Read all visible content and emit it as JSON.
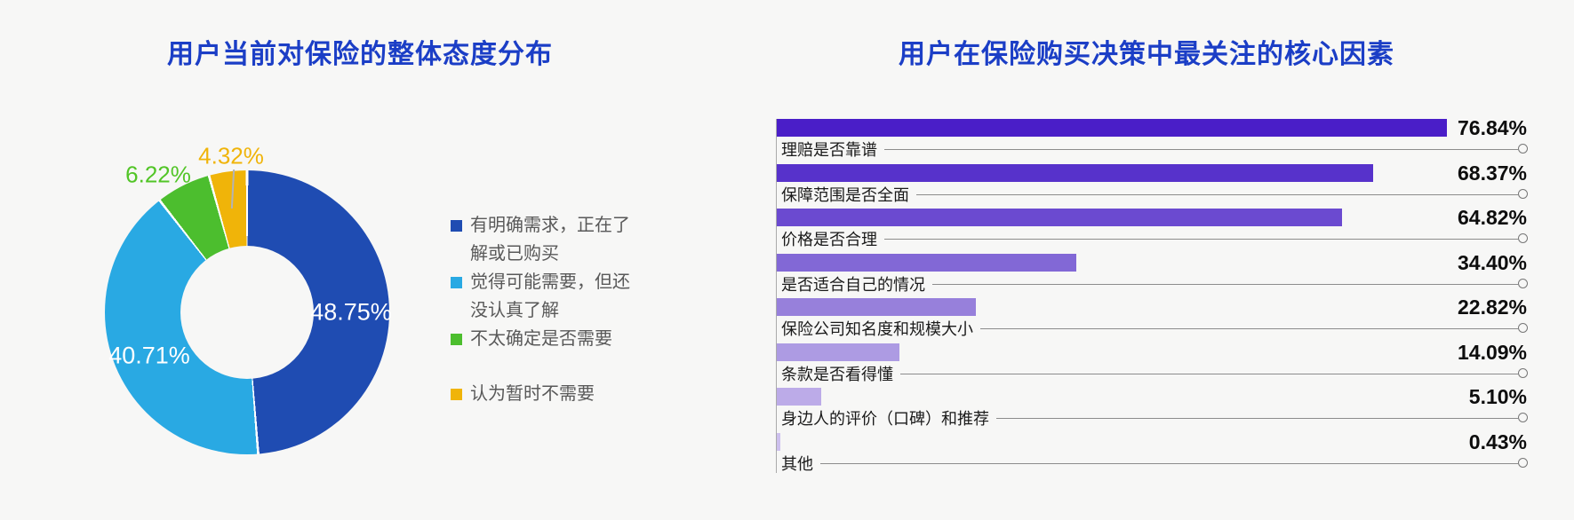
{
  "page": {
    "background": "#f7f7f6",
    "title_color": "#1b3ec6"
  },
  "pie": {
    "title": "用户当前对保险的整体态度分布",
    "slices": [
      {
        "label": "有明确需求，正在了解或已购买",
        "value": 48.75,
        "pct_label": "48.75%",
        "color": "#1f4cb2",
        "pct_label_color": "#ffffff"
      },
      {
        "label": "觉得可能需要，但还没认真了解",
        "value": 40.71,
        "pct_label": "40.71%",
        "color": "#29a9e3",
        "pct_label_color": "#ffffff"
      },
      {
        "label": "不太确定是否需要",
        "value": 6.22,
        "pct_label": "6.22%",
        "color": "#4cbe2e",
        "pct_label_color": "#52c527"
      },
      {
        "label": "认为暂时不需要",
        "value": 4.32,
        "pct_label": "4.32%",
        "color": "#f0b409",
        "pct_label_color": "#f0b409"
      }
    ]
  },
  "bars": {
    "title": "用户在保险购买决策中最关注的核心因素",
    "items": [
      {
        "label": "理赔是否靠谱",
        "value": 76.84,
        "value_label": "76.84%",
        "color": "#4a1ec8"
      },
      {
        "label": "保障范围是否全面",
        "value": 68.37,
        "value_label": "68.37%",
        "color": "#5732cb"
      },
      {
        "label": "价格是否合理",
        "value": 64.82,
        "value_label": "64.82%",
        "color": "#6b4ad0"
      },
      {
        "label": "是否适合自己的情况",
        "value": 34.4,
        "value_label": "34.40%",
        "color": "#8268d6"
      },
      {
        "label": "保险公司知名度和规模大小",
        "value": 22.82,
        "value_label": "22.82%",
        "color": "#9780db"
      },
      {
        "label": "条款是否看得懂",
        "value": 14.09,
        "value_label": "14.09%",
        "color": "#ad9be3"
      },
      {
        "label": "身边人的评价（口碑）和推荐",
        "value": 5.1,
        "value_label": "5.10%",
        "color": "#bcabe8"
      },
      {
        "label": "其他",
        "value": 0.43,
        "value_label": "0.43%",
        "color": "#cdc0ee"
      }
    ]
  },
  "chart_data": [
    {
      "type": "pie",
      "title": "用户当前对保险的整体态度分布",
      "donut": true,
      "start_angle_deg": 0,
      "direction": "clockwise",
      "categories": [
        "有明确需求，正在了解或已购买",
        "觉得可能需要，但还没认真了解",
        "不太确定是否需要",
        "认为暂时不需要"
      ],
      "values": [
        48.75,
        40.71,
        6.22,
        4.32
      ],
      "unit": "%",
      "colors": [
        "#1f4cb2",
        "#29a9e3",
        "#4cbe2e",
        "#f0b409"
      ],
      "legend_position": "right"
    },
    {
      "type": "bar",
      "orientation": "horizontal",
      "title": "用户在保险购买决策中最关注的核心因素",
      "categories": [
        "理赔是否靠谱",
        "保障范围是否全面",
        "价格是否合理",
        "是否适合自己的情况",
        "保险公司知名度和规模大小",
        "条款是否看得懂",
        "身边人的评价（口碑）和推荐",
        "其他"
      ],
      "values": [
        76.84,
        68.37,
        64.82,
        34.4,
        22.82,
        14.09,
        5.1,
        0.43
      ],
      "unit": "%",
      "xlim": [
        0,
        100
      ],
      "grid": false,
      "sort": "descending",
      "bar_colors": [
        "#4a1ec8",
        "#5732cb",
        "#6b4ad0",
        "#8268d6",
        "#9780db",
        "#ad9be3",
        "#bcabe8",
        "#cdc0ee"
      ]
    }
  ]
}
